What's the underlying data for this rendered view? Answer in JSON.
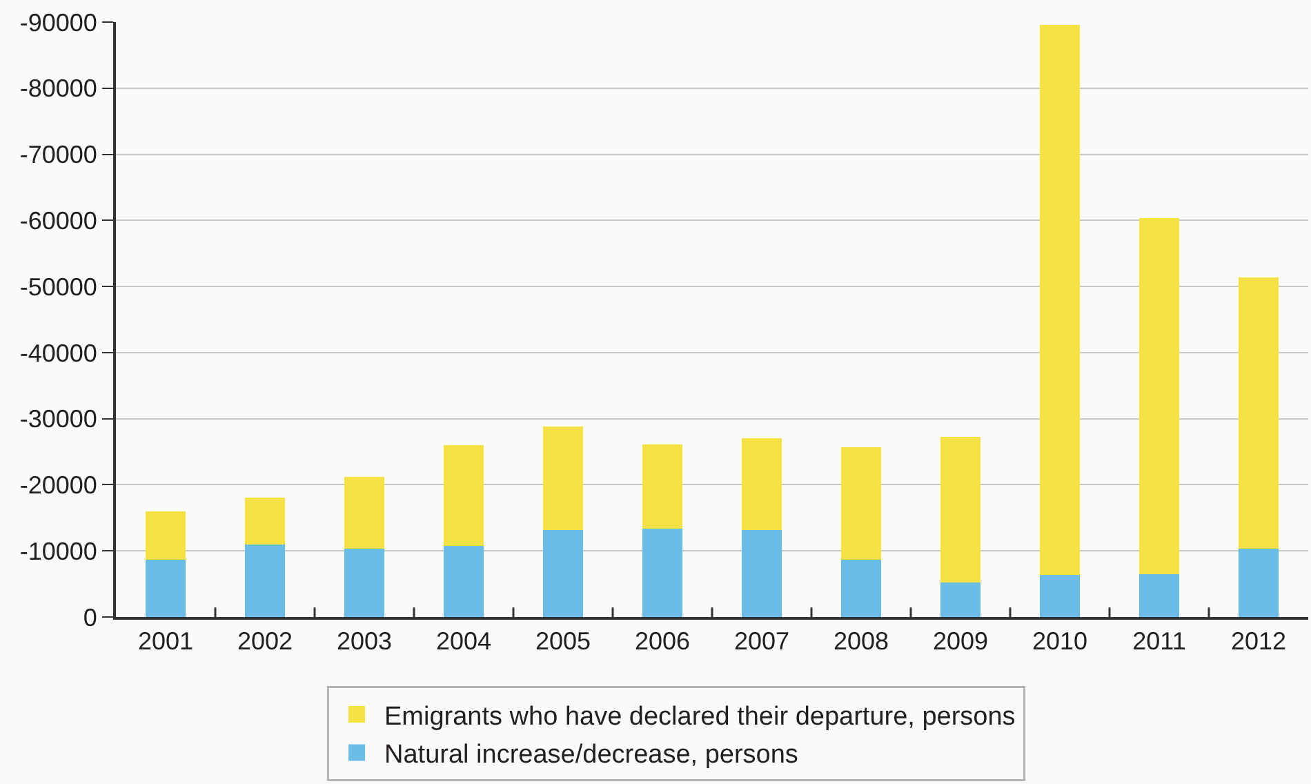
{
  "chart_data": {
    "type": "bar",
    "stacked": true,
    "categories": [
      "2001",
      "2002",
      "2003",
      "2004",
      "2005",
      "2006",
      "2007",
      "2008",
      "2009",
      "2010",
      "2011",
      "2012"
    ],
    "series": [
      {
        "name": "Natural increase/decrease, persons",
        "color": "#6bbde8",
        "values": [
          -8700,
          -11000,
          -10300,
          -10800,
          -13200,
          -13400,
          -13200,
          -8700,
          -5200,
          -6400,
          -6500,
          -10300
        ]
      },
      {
        "name": "Emigrants who have declared their departure, persons",
        "color": "#f4e242",
        "values": [
          -7300,
          -7100,
          -10900,
          -15200,
          -15600,
          -12700,
          -13800,
          -17000,
          -22000,
          -83200,
          -53900,
          -41100
        ]
      }
    ],
    "ylim": [
      0,
      -90000
    ],
    "yticks": [
      0,
      -10000,
      -20000,
      -30000,
      -40000,
      -50000,
      -60000,
      -70000,
      -80000,
      -90000
    ],
    "grid": "y",
    "legend": "bottom"
  }
}
